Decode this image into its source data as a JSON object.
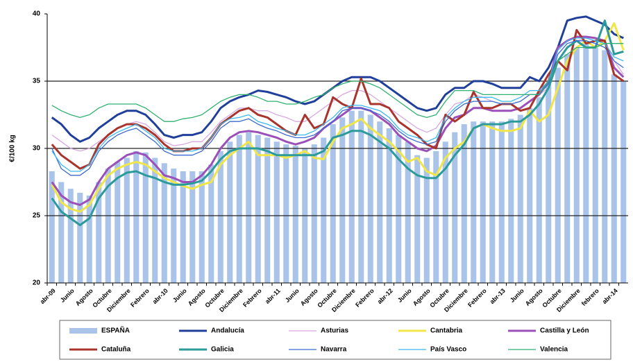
{
  "chart_data": {
    "type": "combo",
    "y_label": "€/100 kg",
    "categories": [
      "abr-09",
      null,
      "Junio",
      null,
      "Agosto",
      null,
      "Octubre",
      null,
      "Diciembre",
      null,
      "Febrero",
      null,
      "abr-10",
      null,
      "Junio",
      null,
      "Agosto",
      null,
      "Octubre",
      null,
      "Diciembre",
      null,
      "Febrero",
      null,
      "abr-11",
      null,
      "Junio",
      null,
      "Agosto",
      null,
      "Octubre",
      null,
      "Diciembre",
      null,
      "Febrero",
      null,
      "abr-12",
      null,
      "Junio",
      null,
      "Agosto",
      null,
      "Octubre",
      null,
      "Diciembre",
      null,
      "Febrero",
      null,
      "abr-13",
      null,
      "Junio",
      null,
      "Agosto",
      null,
      "Octubre",
      null,
      "Diciembre",
      null,
      "febrero",
      null,
      "abr-14",
      null
    ],
    "ylim": [
      20,
      40
    ],
    "yticks": [
      20,
      25,
      30,
      35,
      40
    ],
    "grid": true,
    "series": [
      {
        "name": "ESPAÑA",
        "type": "bar",
        "color": "#a9c4e8",
        "values": [
          28.3,
          27.5,
          27.0,
          26.7,
          26.5,
          27.5,
          28.5,
          29.0,
          29.3,
          29.8,
          29.7,
          29.3,
          28.9,
          28.5,
          28.3,
          28.3,
          28.3,
          28.8,
          29.8,
          30.5,
          31.0,
          31.2,
          31.0,
          30.8,
          30.5,
          30.3,
          30.2,
          30.0,
          30.3,
          30.8,
          31.8,
          32.3,
          32.8,
          32.8,
          32.5,
          32.0,
          31.5,
          31.0,
          30.5,
          29.5,
          29.3,
          29.8,
          30.5,
          31.2,
          31.8,
          32.0,
          32.0,
          32.0,
          32.0,
          32.2,
          32.5,
          33.0,
          33.8,
          34.8,
          36.0,
          37.0,
          37.5,
          37.8,
          37.5,
          37.3,
          35.5,
          35.0
        ]
      },
      {
        "name": "Andalucía",
        "type": "line",
        "color": "#1f3f9a",
        "line_width": 3,
        "values": [
          32.3,
          31.8,
          31.0,
          30.5,
          30.8,
          31.5,
          32.0,
          32.5,
          32.8,
          32.8,
          32.5,
          31.8,
          31.0,
          30.8,
          31.0,
          31.0,
          31.2,
          32.0,
          33.0,
          33.5,
          33.8,
          34.0,
          34.3,
          34.2,
          34.0,
          33.8,
          33.5,
          33.3,
          33.5,
          34.0,
          34.5,
          35.0,
          35.3,
          35.3,
          35.3,
          35.0,
          34.5,
          34.0,
          33.5,
          33.0,
          32.8,
          33.0,
          34.0,
          34.5,
          34.5,
          35.0,
          35.0,
          34.8,
          34.5,
          34.5,
          34.5,
          35.3,
          35.0,
          36.0,
          37.5,
          39.5,
          39.7,
          39.8,
          39.5,
          39.2,
          38.5,
          38.2
        ]
      },
      {
        "name": "Asturias",
        "type": "line",
        "color": "#d8a8e0",
        "line_width": 1.3,
        "values": [
          31.0,
          30.5,
          30.0,
          29.8,
          30.0,
          30.5,
          31.0,
          31.5,
          31.8,
          32.0,
          31.8,
          31.2,
          30.5,
          30.2,
          30.3,
          30.5,
          30.5,
          31.2,
          32.0,
          32.5,
          33.0,
          33.0,
          32.8,
          32.8,
          32.5,
          32.3,
          32.0,
          32.0,
          32.5,
          33.0,
          33.5,
          34.0,
          34.3,
          34.3,
          34.0,
          33.5,
          33.0,
          32.5,
          32.0,
          31.5,
          31.2,
          31.5,
          32.5,
          33.3,
          33.5,
          34.0,
          33.8,
          33.5,
          33.3,
          33.3,
          33.5,
          34.0,
          34.0,
          34.5,
          36.5,
          37.5,
          38.0,
          38.2,
          38.0,
          38.0,
          36.5,
          35.5
        ]
      },
      {
        "name": "Cantabria",
        "type": "line",
        "color": "#f0e648",
        "line_width": 3,
        "values": [
          27.3,
          26.0,
          25.5,
          25.3,
          25.8,
          27.0,
          28.0,
          28.5,
          28.8,
          29.0,
          28.8,
          28.3,
          27.8,
          27.5,
          27.2,
          27.0,
          27.3,
          27.5,
          28.8,
          29.5,
          30.0,
          30.5,
          29.5,
          29.5,
          29.5,
          29.3,
          29.5,
          29.8,
          29.3,
          29.2,
          30.5,
          31.5,
          31.8,
          32.2,
          31.5,
          31.0,
          30.5,
          29.8,
          29.0,
          29.3,
          28.3,
          28.0,
          29.3,
          30.0,
          30.5,
          31.5,
          31.8,
          31.5,
          31.3,
          31.3,
          31.5,
          32.8,
          32.0,
          32.5,
          34.5,
          36.5,
          37.5,
          38.0,
          37.5,
          38.0,
          39.3,
          37.3
        ]
      },
      {
        "name": "Castilla y León",
        "type": "line",
        "color": "#9b4fb8",
        "line_width": 3,
        "values": [
          27.5,
          26.5,
          26.0,
          25.8,
          26.2,
          27.5,
          28.5,
          29.0,
          29.5,
          29.7,
          29.5,
          28.8,
          28.0,
          27.8,
          27.5,
          27.5,
          28.0,
          28.8,
          30.0,
          30.8,
          31.2,
          31.3,
          31.2,
          31.0,
          30.8,
          30.5,
          30.3,
          30.5,
          30.8,
          31.5,
          32.0,
          32.5,
          33.0,
          33.0,
          32.8,
          32.3,
          31.8,
          31.0,
          30.5,
          30.0,
          29.8,
          30.2,
          31.5,
          32.3,
          32.5,
          33.0,
          33.0,
          32.8,
          32.8,
          32.8,
          33.0,
          33.5,
          34.0,
          35.0,
          37.5,
          38.0,
          38.3,
          38.3,
          38.2,
          38.0,
          36.0,
          35.3
        ]
      },
      {
        "name": "Cataluña",
        "type": "line",
        "color": "#a8342c",
        "line_width": 3,
        "values": [
          30.3,
          29.5,
          29.0,
          28.5,
          28.8,
          30.3,
          31.0,
          31.5,
          31.8,
          31.8,
          31.5,
          31.0,
          30.3,
          29.8,
          29.8,
          30.0,
          30.0,
          30.8,
          31.8,
          32.3,
          32.8,
          33.0,
          32.5,
          32.3,
          31.8,
          31.3,
          31.0,
          32.5,
          31.5,
          31.8,
          33.8,
          33.3,
          33.0,
          35.2,
          33.3,
          33.3,
          33.0,
          32.0,
          31.5,
          31.0,
          30.3,
          30.0,
          32.5,
          32.0,
          32.5,
          34.2,
          33.0,
          33.0,
          33.3,
          33.3,
          32.8,
          33.0,
          34.3,
          35.5,
          36.5,
          35.8,
          38.8,
          37.8,
          38.0,
          38.0,
          35.5,
          35.0
        ]
      },
      {
        "name": "Galicia",
        "type": "line",
        "color": "#2a9a9a",
        "line_width": 3,
        "values": [
          26.3,
          25.3,
          24.8,
          24.3,
          24.8,
          26.3,
          27.2,
          27.8,
          28.2,
          28.3,
          28.0,
          27.8,
          27.5,
          27.3,
          27.3,
          27.4,
          27.6,
          28.3,
          29.2,
          29.8,
          30.0,
          30.0,
          30.0,
          29.8,
          29.5,
          29.5,
          29.5,
          29.5,
          29.5,
          29.8,
          30.8,
          31.0,
          31.3,
          31.3,
          31.0,
          30.5,
          30.0,
          29.2,
          28.5,
          28.0,
          27.8,
          27.8,
          28.5,
          29.5,
          30.3,
          31.5,
          31.8,
          31.8,
          31.8,
          32.0,
          32.0,
          32.5,
          33.3,
          34.5,
          36.5,
          37.5,
          38.0,
          37.5,
          37.5,
          39.5,
          37.0,
          37.2
        ]
      },
      {
        "name": "Navarra",
        "type": "line",
        "color": "#3a6ad0",
        "line_width": 1.3,
        "values": [
          30.0,
          28.5,
          28.0,
          28.0,
          28.5,
          29.8,
          30.5,
          31.0,
          31.3,
          31.5,
          31.0,
          30.5,
          29.8,
          29.5,
          29.5,
          29.5,
          29.8,
          30.5,
          31.5,
          32.0,
          32.0,
          32.2,
          31.8,
          31.5,
          31.3,
          31.0,
          30.8,
          30.8,
          31.0,
          31.5,
          32.0,
          32.8,
          33.0,
          33.0,
          32.8,
          32.5,
          32.0,
          31.3,
          30.8,
          30.5,
          30.3,
          30.5,
          32.0,
          32.8,
          33.3,
          33.5,
          33.5,
          33.5,
          33.3,
          33.3,
          33.5,
          34.0,
          34.0,
          34.8,
          37.0,
          37.8,
          38.0,
          38.0,
          37.8,
          37.5,
          36.5,
          36.0
        ]
      },
      {
        "name": "País Vasco",
        "type": "line",
        "color": "#3ab8f0",
        "line_width": 1.3,
        "values": [
          29.8,
          28.8,
          28.3,
          28.3,
          28.8,
          30.0,
          30.8,
          31.2,
          31.5,
          31.8,
          31.3,
          30.8,
          30.0,
          29.8,
          29.8,
          29.8,
          30.0,
          30.8,
          31.8,
          32.2,
          32.3,
          32.5,
          32.0,
          31.8,
          31.5,
          31.3,
          31.0,
          31.0,
          31.3,
          31.8,
          32.3,
          33.0,
          33.2,
          33.2,
          33.0,
          32.8,
          32.3,
          31.5,
          31.0,
          30.8,
          30.5,
          30.8,
          32.3,
          33.0,
          33.5,
          33.8,
          33.8,
          33.8,
          33.5,
          33.5,
          33.8,
          34.3,
          34.3,
          35.0,
          37.3,
          38.0,
          38.2,
          38.2,
          38.0,
          37.8,
          36.8,
          36.5
        ]
      },
      {
        "name": "Valencia",
        "type": "line",
        "color": "#30b070",
        "line_width": 1.3,
        "values": [
          33.2,
          32.8,
          32.5,
          32.3,
          32.5,
          33.0,
          33.3,
          33.3,
          33.3,
          33.3,
          33.0,
          32.5,
          32.0,
          32.0,
          32.2,
          32.3,
          32.5,
          33.0,
          33.5,
          33.8,
          34.0,
          34.0,
          33.8,
          33.5,
          33.5,
          33.3,
          33.3,
          33.5,
          33.8,
          34.0,
          34.5,
          34.8,
          35.0,
          35.0,
          34.8,
          34.5,
          34.0,
          33.5,
          33.0,
          32.5,
          32.3,
          32.5,
          33.5,
          34.3,
          34.3,
          34.3,
          34.0,
          34.0,
          34.0,
          34.0,
          34.0,
          34.0,
          34.0,
          35.0,
          36.5,
          37.0,
          37.5,
          37.5,
          37.5,
          37.8,
          37.8,
          37.8
        ]
      }
    ]
  }
}
